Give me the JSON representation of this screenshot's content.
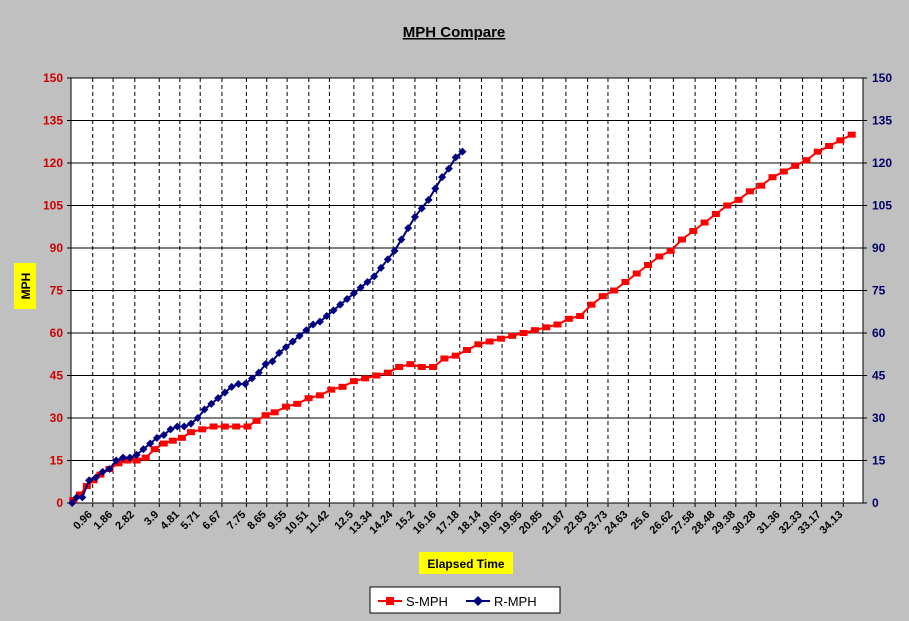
{
  "chart_data": {
    "type": "line",
    "title": "MPH Compare",
    "xlabel": "Elapsed Time",
    "ylabel": "MPH",
    "ylim": [
      0,
      150
    ],
    "y_ticks": [
      "0",
      "15",
      "30",
      "45",
      "60",
      "75",
      "90",
      "105",
      "120",
      "135",
      "150"
    ],
    "y2_ticks": [
      "0",
      "15",
      "30",
      "45",
      "60",
      "75",
      "90",
      "105",
      "120",
      "135",
      "150"
    ],
    "x_tick_labels": [
      "0.96",
      "1.86",
      "2.82",
      "3.9",
      "4.81",
      "5.71",
      "6.67",
      "7.75",
      "8.65",
      "9.55",
      "10.51",
      "11.42",
      "12.5",
      "13.34",
      "14.24",
      "15.2",
      "16.16",
      "17.18",
      "18.14",
      "19.05",
      "19.95",
      "20.85",
      "21.87",
      "22.83",
      "23.73",
      "24.63",
      "25.6",
      "26.62",
      "27.58",
      "28.48",
      "29.38",
      "30.28",
      "31.36",
      "32.33",
      "33.17",
      "34.13"
    ],
    "x_tick_values": [
      0.96,
      1.86,
      2.82,
      3.9,
      4.81,
      5.71,
      6.67,
      7.75,
      8.65,
      9.55,
      10.51,
      11.42,
      12.5,
      13.34,
      14.24,
      15.2,
      16.16,
      17.18,
      18.14,
      19.05,
      19.95,
      20.85,
      21.87,
      22.83,
      23.73,
      24.63,
      25.6,
      26.62,
      27.58,
      28.48,
      29.38,
      30.28,
      31.36,
      32.33,
      33.17,
      34.13
    ],
    "xlim": [
      0,
      35.0
    ],
    "grid": true,
    "legend_position": "bottom",
    "series": [
      {
        "name": "S-MPH",
        "color": "#ff0000",
        "marker": "square",
        "axis": "left",
        "x": [
          0.1,
          0.4,
          0.7,
          1.0,
          1.3,
          1.7,
          2.1,
          2.5,
          2.9,
          3.3,
          3.7,
          4.1,
          4.5,
          4.9,
          5.3,
          5.8,
          6.3,
          6.8,
          7.3,
          7.8,
          8.2,
          8.6,
          9.0,
          9.5,
          10.0,
          10.5,
          11.0,
          11.5,
          12.0,
          12.5,
          13.0,
          13.5,
          14.0,
          14.5,
          15.0,
          15.5,
          16.0,
          16.5,
          17.0,
          17.5,
          18.0,
          18.5,
          19.0,
          19.5,
          20.0,
          20.5,
          21.0,
          21.5,
          22.0,
          22.5,
          23.0,
          23.5,
          24.0,
          24.5,
          25.0,
          25.5,
          26.0,
          26.5,
          27.0,
          27.5,
          28.0,
          28.5,
          29.0,
          29.5,
          30.0,
          30.5,
          31.0,
          31.5,
          32.0,
          32.5,
          33.0,
          33.5,
          34.0,
          34.5
        ],
        "y": [
          1,
          3,
          6,
          8,
          10,
          12,
          14,
          15,
          15,
          16,
          19,
          21,
          22,
          23,
          25,
          26,
          27,
          27,
          27,
          27,
          29,
          31,
          32,
          34,
          35,
          37,
          38,
          40,
          41,
          43,
          44,
          45,
          46,
          48,
          49,
          48,
          48,
          51,
          52,
          54,
          56,
          57,
          58,
          59,
          60,
          61,
          62,
          63,
          65,
          66,
          70,
          73,
          75,
          78,
          81,
          84,
          87,
          89,
          93,
          96,
          99,
          102,
          105,
          107,
          110,
          112,
          115,
          117,
          119,
          121,
          124,
          126,
          128,
          130
        ]
      },
      {
        "name": "R-MPH",
        "color": "#000080",
        "marker": "diamond",
        "axis": "right",
        "x": [
          0.05,
          0.25,
          0.5,
          0.8,
          1.1,
          1.4,
          1.7,
          2.0,
          2.3,
          2.6,
          2.9,
          3.2,
          3.5,
          3.8,
          4.1,
          4.4,
          4.7,
          5.0,
          5.3,
          5.6,
          5.9,
          6.2,
          6.5,
          6.8,
          7.1,
          7.4,
          7.7,
          8.0,
          8.3,
          8.6,
          8.9,
          9.2,
          9.5,
          9.8,
          10.1,
          10.4,
          10.7,
          11.0,
          11.3,
          11.6,
          11.9,
          12.2,
          12.5,
          12.8,
          13.1,
          13.4,
          13.7,
          14.0,
          14.3,
          14.6,
          14.9,
          15.2,
          15.5,
          15.8,
          16.1,
          16.4,
          16.7,
          17.0,
          17.3
        ],
        "y": [
          0,
          2,
          2,
          8,
          9,
          11,
          12,
          15,
          16,
          16,
          17,
          19,
          21,
          23,
          24,
          26,
          27,
          27,
          28,
          30,
          33,
          35,
          37,
          39,
          41,
          42,
          42,
          44,
          46,
          49,
          50,
          53,
          55,
          57,
          59,
          61,
          63,
          64,
          66,
          68,
          70,
          72,
          74,
          76,
          78,
          80,
          83,
          86,
          89,
          93,
          97,
          101,
          104,
          107,
          111,
          115,
          118,
          122,
          124
        ]
      }
    ]
  }
}
